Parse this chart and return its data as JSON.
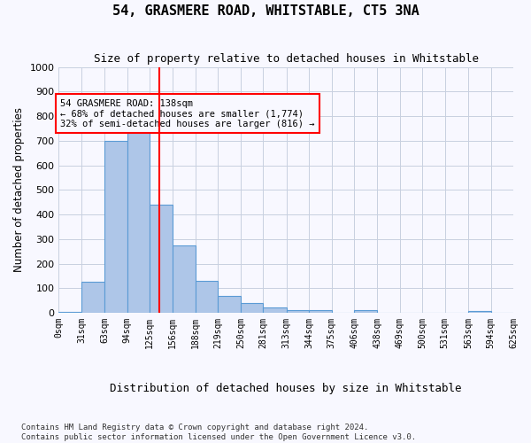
{
  "title": "54, GRASMERE ROAD, WHITSTABLE, CT5 3NA",
  "subtitle": "Size of property relative to detached houses in Whitstable",
  "xlabel": "Distribution of detached houses by size in Whitstable",
  "ylabel": "Number of detached properties",
  "bar_color": "#aec6e8",
  "bar_edge_color": "#5b9bd5",
  "grid_color": "#c8d0e0",
  "vline_x": 138,
  "vline_color": "red",
  "annotation_text": "54 GRASMERE ROAD: 138sqm\n← 68% of detached houses are smaller (1,774)\n32% of semi-detached houses are larger (816) →",
  "annotation_box_color": "red",
  "bins": [
    0,
    31,
    63,
    94,
    125,
    156,
    188,
    219,
    250,
    281,
    313,
    344,
    375,
    406,
    438,
    469,
    500,
    531,
    563,
    594,
    625
  ],
  "bin_labels": [
    "0sqm",
    "31sqm",
    "63sqm",
    "94sqm",
    "125sqm",
    "156sqm",
    "188sqm",
    "219sqm",
    "250sqm",
    "281sqm",
    "313sqm",
    "344sqm",
    "375sqm",
    "406sqm",
    "438sqm",
    "469sqm",
    "500sqm",
    "531sqm",
    "563sqm",
    "594sqm",
    "625sqm"
  ],
  "bar_heights": [
    5,
    125,
    700,
    775,
    440,
    275,
    130,
    70,
    38,
    22,
    12,
    12,
    0,
    10,
    0,
    0,
    0,
    0,
    8,
    0
  ],
  "ylim": [
    0,
    1000
  ],
  "yticks": [
    0,
    100,
    200,
    300,
    400,
    500,
    600,
    700,
    800,
    900,
    1000
  ],
  "figsize": [
    6.0,
    5.0
  ],
  "dpi": 100,
  "footer": "Contains HM Land Registry data © Crown copyright and database right 2024.\nContains public sector information licensed under the Open Government Licence v3.0.",
  "bg_color": "#f8f8ff"
}
